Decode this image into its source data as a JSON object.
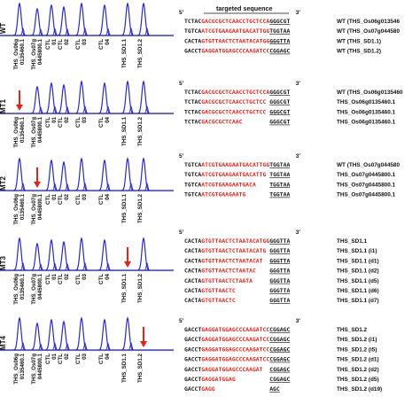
{
  "colors": {
    "trace": "#2a2ab8",
    "arrow": "#e0231b",
    "target": "#d8261c",
    "insert": "#23a84a",
    "text": "#111111"
  },
  "panel_labels": [
    "WT",
    "MT1",
    "MT2",
    "MT3",
    "MT4"
  ],
  "electropherogram": {
    "peak_labels": [
      "THS_Os06g 0135460.1",
      "THS_Os07g 0445800.1",
      "CTL 01",
      "CTL 02",
      "CTL 03",
      "CTL 04",
      "THS_SD1.1",
      "THS_SD1.2"
    ]
  },
  "alignment": {
    "header": "targeted sequence",
    "five_prime": "5'",
    "three_prime": "3'",
    "groups": [
      {
        "rows": [
          {
            "pre": "TCTAC",
            "red": "GACGCGCTCAACCTGCTCCA",
            "post": "GGGCGT",
            "label": "WT (THS_Os06g013546"
          },
          {
            "pre": "TGTCA",
            "red": "ATCGTGAAGAATGACATTGG",
            "post": "TGGTAA",
            "label": "WT (THS_Os07g044580"
          },
          {
            "pre": "CACTA",
            "red": "GTGTTAACTCTAATACATGG",
            "post": "GGGTTA",
            "label": "WT (THS_SD1.1)"
          },
          {
            "pre": "GACCT",
            "red": "GAGGATGGAGCCCAAGATCC",
            "post": "CGGAGC",
            "label": "WT (THS_SD1.2)"
          }
        ]
      },
      {
        "rows": [
          {
            "pre": "TCTAC",
            "red": "GACGCGCTCAACCTGCTCCA",
            "post": "GGGCGT",
            "label": "WT (THS_Os06g0135460"
          },
          {
            "pre": "TCTAC",
            "red": "GACGCGCTCAACCTGCTCC",
            "post": "GGGCGT",
            "label": "THS_Os06g0135460.1"
          },
          {
            "pre": "TCTAC",
            "red": "GACGCGCTCAACCTGCTCC",
            "post": "GGGCGT",
            "label": "THS_Os06g0135460.1"
          },
          {
            "pre": "TCTAC",
            "red": "GACGCGCTCAAC",
            "post": "GGGCGT",
            "label": "THS_Os06g0135460.1"
          }
        ]
      },
      {
        "rows": [
          {
            "pre": "TGTCA",
            "red": "ATCGTGAAGAATGACATTGG",
            "post": "TGGTAA",
            "label": "WT (THS_Os07g044580"
          },
          {
            "pre": "TGTCA",
            "red": "ATCGTGAAGAATGACATTG",
            "post": "TGGTAA",
            "label": "THS_Os07g0445800.1"
          },
          {
            "pre": "TGTCA",
            "red": "ATCGTGAAGAATGACA",
            "post": "TGGTAA",
            "label": "THS_Os07g0445800.1"
          },
          {
            "pre": "TGTCA",
            "red": "ATCGTGAAGAATG",
            "post": "TGGTAA",
            "label": "THS_Os07g0445800.1"
          }
        ]
      },
      {
        "rows": [
          {
            "pre": "CACTA",
            "red": "GTGTTAACTCTAATACATGG",
            "post": "GGGTTA",
            "label": "THS_SD1.1"
          },
          {
            "pre": "CACTA",
            "red": "GTGTTAACTCTAATACATG",
            "post": "GGGTTA",
            "label": "THS_SD1.1 (i1)"
          },
          {
            "pre": "CACTA",
            "red": "GTGTTAACTCTAATACAT",
            "post": "GGGTTA",
            "label": "THS_SD1.1 (d1)"
          },
          {
            "pre": "CACTA",
            "red": "GTGTTAACTCTAATAC",
            "post": "GGGTTA",
            "label": "THS_SD1.1 (d2)"
          },
          {
            "pre": "CACTA",
            "red": "GTGTTAACTCTAATA",
            "post": "GGGTTA",
            "label": "THS_SD1.1 (d5)"
          },
          {
            "pre": "CACTA",
            "red": "GTGTTAACTC",
            "post": "GGGTTA",
            "label": "THS_SD1.1 (d6)"
          },
          {
            "pre": "CACTA",
            "red": "GTGTTAACTC",
            "post": "GGGTTA",
            "label": "THS_SD1.1 (d7)"
          }
        ]
      },
      {
        "rows": [
          {
            "pre": "GACCT",
            "red": "GAGGATGGAGCCCAAGATCC",
            "post": "CGGAGC",
            "label": "THS_SD1.2"
          },
          {
            "pre": "GACCT",
            "red": "GAGGATGGAGCCCAAGATCC",
            "post": "CGGAGC",
            "label": "THS_SD1.2 (i1)"
          },
          {
            "pre": "GACCT",
            "red": "GAGGATGGAGCCCAAGATCC",
            "post": "CGGAGC",
            "label": "THS_SD1.2 (i5)"
          },
          {
            "pre": "GACCT",
            "red": "GAGGATGGAGCCCAAGATCC",
            "post": "CGGAGC",
            "label": "THS_SD1.2 (d1)"
          },
          {
            "pre": "GACCT",
            "red": "GAGGATGGAGCCCAAGAT",
            "post": "CGGAGC",
            "label": "THS_SD1.2 (d2)"
          },
          {
            "pre": "GACCT",
            "red": "GAGGATGGAG",
            "post": "CGGAGC",
            "label": "THS_SD1.2 (d5)"
          },
          {
            "pre": "GACCT",
            "red": "GAGG",
            "post": "AGC",
            "label": "THS_SD1.2 (d19)"
          }
        ]
      }
    ]
  }
}
